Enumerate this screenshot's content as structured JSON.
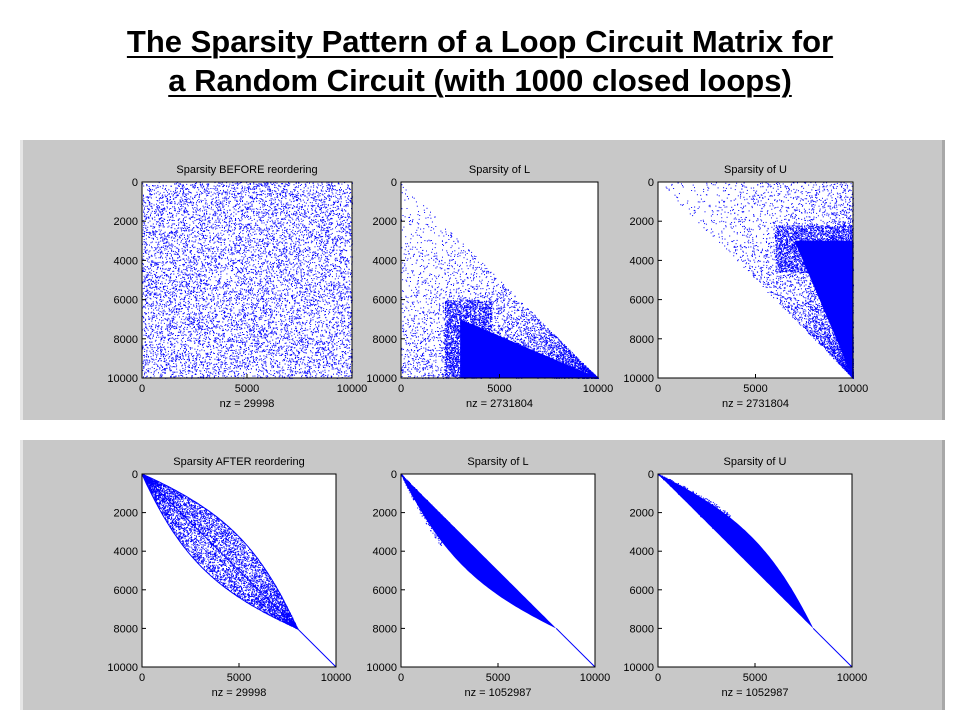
{
  "slide": {
    "title_line1": "The Sparsity Pattern of a Loop Circuit Matrix for",
    "title_line2": "a Random Circuit (with 1000 closed loops)"
  },
  "colors": {
    "marker": "#0000ff",
    "panel_bg": "#c8c8c8",
    "axes_bg": "#ffffff"
  },
  "chart_data": [
    {
      "type": "scatter",
      "panel": "top",
      "title": "Sparsity BEFORE reordering",
      "xlabel": "nz = 29998",
      "xlim": [
        0,
        10000
      ],
      "ylim": [
        0,
        10000
      ],
      "y_reversed": true,
      "xticks": [
        "0",
        "5000",
        "10000"
      ],
      "yticks": [
        "0",
        "2000",
        "4000",
        "6000",
        "8000",
        "10000"
      ],
      "nz": 29998,
      "pattern": "uniform random over full matrix"
    },
    {
      "type": "scatter",
      "panel": "top",
      "title": "Sparsity of L",
      "xlabel": "nz = 2731804",
      "xlim": [
        0,
        10000
      ],
      "ylim": [
        0,
        10000
      ],
      "y_reversed": true,
      "xticks": [
        "0",
        "5000",
        "10000"
      ],
      "yticks": [
        "0",
        "2000",
        "4000",
        "6000",
        "8000",
        "10000"
      ],
      "nz": 2731804,
      "pattern": "lower triangle, density increasing toward diagonal and bottom rows"
    },
    {
      "type": "scatter",
      "panel": "top",
      "title": "Sparsity of U",
      "xlabel": "nz = 2731804",
      "xlim": [
        0,
        10000
      ],
      "ylim": [
        0,
        10000
      ],
      "y_reversed": true,
      "xticks": [
        "0",
        "5000",
        "10000"
      ],
      "yticks": [
        "0",
        "2000",
        "4000",
        "6000",
        "8000",
        "10000"
      ],
      "nz": 2731804,
      "pattern": "upper triangle, density increasing toward diagonal and right columns"
    },
    {
      "type": "scatter",
      "panel": "bottom",
      "title": "Sparsity AFTER reordering",
      "xlabel": "nz = 29998",
      "xlim": [
        0,
        10000
      ],
      "ylim": [
        0,
        10000
      ],
      "y_reversed": true,
      "xticks": [
        "0",
        "5000",
        "10000"
      ],
      "yticks": [
        "0",
        "2000",
        "4000",
        "6000",
        "8000",
        "10000"
      ],
      "nz": 29998,
      "pattern": "lens-shaped band around diagonal from (0,0) to (8000,8000), then diagonal to (10000,10000)"
    },
    {
      "type": "scatter",
      "panel": "bottom",
      "title": "Sparsity of L",
      "xlabel": "nz = 1052987",
      "xlim": [
        0,
        10000
      ],
      "ylim": [
        0,
        10000
      ],
      "y_reversed": true,
      "xticks": [
        "0",
        "5000",
        "10000"
      ],
      "yticks": [
        "0",
        "2000",
        "4000",
        "6000",
        "8000",
        "10000"
      ],
      "nz": 1052987,
      "pattern": "lower half of lens band, solid fill"
    },
    {
      "type": "scatter",
      "panel": "bottom",
      "title": "Sparsity of U",
      "xlabel": "nz = 1052987",
      "xlim": [
        0,
        10000
      ],
      "ylim": [
        0,
        10000
      ],
      "y_reversed": true,
      "xticks": [
        "0",
        "5000",
        "10000"
      ],
      "yticks": [
        "0",
        "2000",
        "4000",
        "6000",
        "8000",
        "10000"
      ],
      "nz": 1052987,
      "pattern": "upper half of lens band, solid fill"
    }
  ]
}
